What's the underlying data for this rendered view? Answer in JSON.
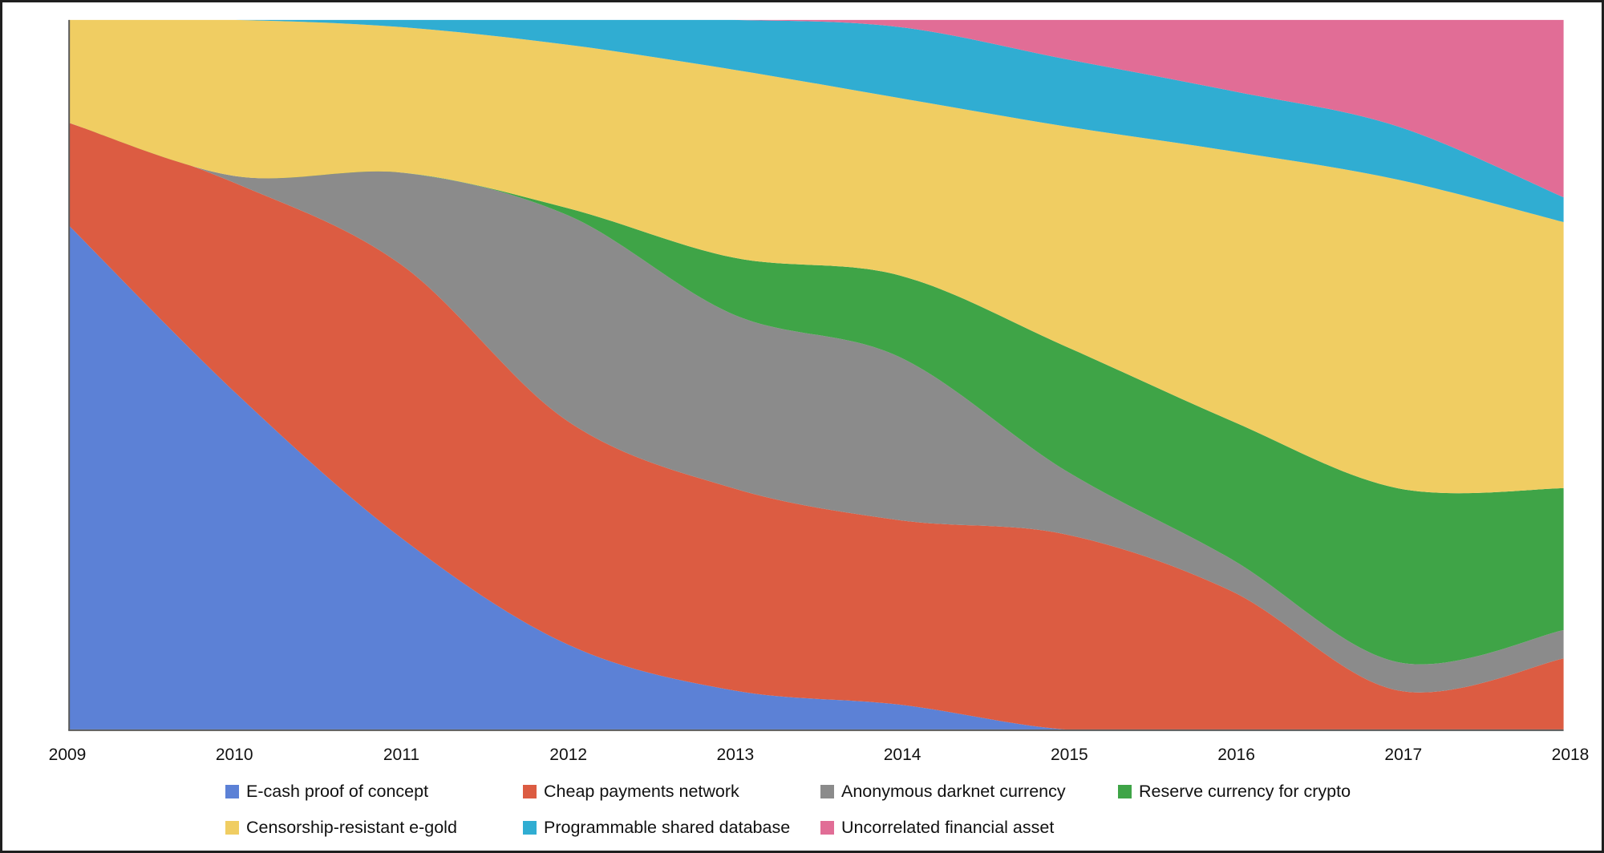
{
  "chart_data": {
    "type": "area",
    "stacked": true,
    "title": "",
    "xlabel": "",
    "ylabel": "",
    "unit": "share of total (%), 100% stacked",
    "grid": false,
    "legend_position": "bottom",
    "ylim": [
      0,
      100
    ],
    "x": [
      2009,
      2010,
      2011,
      2012,
      2013,
      2014,
      2015,
      2016,
      2017,
      2018
    ],
    "x_tick_labels": [
      "2009",
      "2010",
      "2011",
      "2012",
      "2013",
      "2014",
      "2015",
      "2016",
      "2017",
      "2018"
    ],
    "series": [
      {
        "name": "E-cash proof of concept",
        "color": "#5C81D6",
        "values": [
          71,
          47.5,
          27,
          12,
          5.5,
          3.5,
          0,
          0,
          0,
          0
        ]
      },
      {
        "name": "Cheap payments network",
        "color": "#DC5C42",
        "values": [
          14.5,
          29.5,
          38.5,
          31.5,
          28.5,
          26,
          27.5,
          19.5,
          5.5,
          10
        ]
      },
      {
        "name": "Anonymous darknet currency",
        "color": "#8B8B8B",
        "values": [
          0,
          1,
          13,
          29,
          24.5,
          23,
          9,
          4.5,
          4,
          4
        ]
      },
      {
        "name": "Reserve currency for crypto",
        "color": "#3FA447",
        "values": [
          0,
          0,
          0,
          1,
          8,
          11.5,
          17.5,
          19.5,
          24.5,
          20
        ]
      },
      {
        "name": "Censorship-resistant e-gold",
        "color": "#F0CD62",
        "values": [
          14.5,
          22,
          20.5,
          23,
          26.5,
          25,
          31,
          38,
          43.5,
          37.5
        ]
      },
      {
        "name": "Programmable shared database",
        "color": "#30ADD2",
        "values": [
          0,
          0,
          1,
          3.5,
          7,
          10,
          9.5,
          8.5,
          7.5,
          3.5
        ]
      },
      {
        "name": "Uncorrelated financial asset",
        "color": "#E16D96",
        "values": [
          0,
          0,
          0,
          0,
          0,
          1,
          5.5,
          10,
          15,
          25
        ]
      }
    ],
    "legend_rows": [
      [
        0,
        1,
        2,
        3
      ],
      [
        4,
        5,
        6
      ]
    ],
    "axis_color": "#595959",
    "background": "#FFFFFF"
  }
}
